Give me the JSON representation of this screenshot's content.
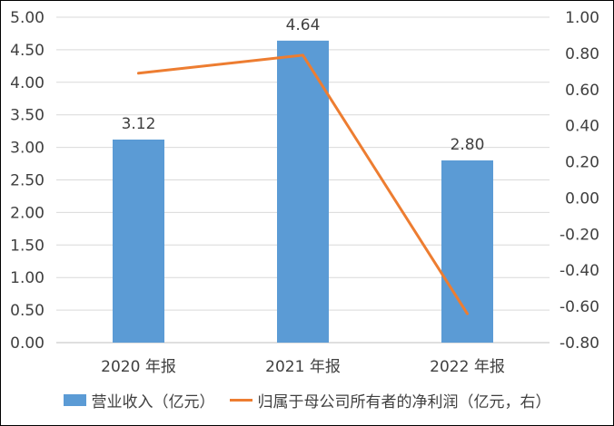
{
  "chart_data": {
    "type": "bar",
    "categories": [
      "2020 年报",
      "2021 年报",
      "2022 年报"
    ],
    "series": [
      {
        "name": "营业收入（亿元）",
        "type": "bar",
        "axis": "left",
        "values": [
          3.12,
          4.64,
          2.8
        ],
        "data_labels": [
          "3.12",
          "4.64",
          "2.80"
        ],
        "color": "#5b9bd5"
      },
      {
        "name": "归属于母公司所有者的净利润（亿元，右）",
        "type": "line",
        "axis": "right",
        "values": [
          0.69,
          0.79,
          -0.64
        ],
        "color": "#ed7d31"
      }
    ],
    "y_left": {
      "ylim": [
        0,
        5
      ],
      "ticks": [
        "0.00",
        "0.50",
        "1.00",
        "1.50",
        "2.00",
        "2.50",
        "3.00",
        "3.50",
        "4.00",
        "4.50",
        "5.00"
      ]
    },
    "y_right": {
      "ylim": [
        -0.8,
        1.0
      ],
      "ticks": [
        "-0.80",
        "-0.60",
        "-0.40",
        "-0.20",
        "0.00",
        "0.20",
        "0.40",
        "0.60",
        "0.80",
        "1.00"
      ]
    },
    "grid": true,
    "legend_position": "bottom"
  }
}
